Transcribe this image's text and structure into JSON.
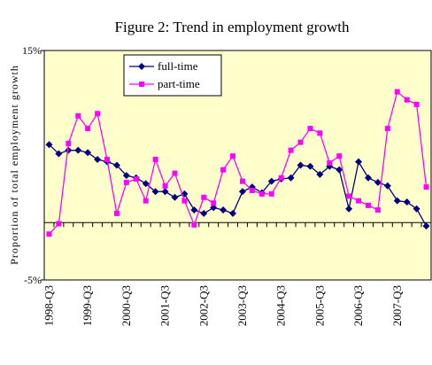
{
  "chart_data": {
    "type": "line",
    "title": "Figure 2: Trend in  employment growth",
    "y_label": "Proportion of total employment growth",
    "categories": [
      "1998-Q3",
      null,
      null,
      null,
      "1999-Q3",
      null,
      null,
      null,
      "2000-Q3",
      null,
      null,
      null,
      "2001-Q3",
      null,
      null,
      null,
      "2002-Q3",
      null,
      null,
      null,
      "2003-Q3",
      null,
      null,
      null,
      "2004-Q3",
      null,
      null,
      null,
      "2005-Q3",
      null,
      null,
      null,
      "2006-Q3",
      null,
      null,
      null,
      "2007-Q3",
      null,
      null,
      null
    ],
    "series": [
      {
        "name": "full-time",
        "color": "#000080",
        "marker": "diamond",
        "values": [
          6.8,
          6.0,
          6.3,
          6.3,
          6.1,
          5.5,
          5.3,
          5.0,
          4.1,
          3.9,
          3.4,
          2.7,
          2.7,
          2.2,
          2.5,
          1.1,
          0.8,
          1.3,
          1.1,
          0.8,
          2.7,
          3.1,
          2.6,
          3.6,
          3.8,
          3.9,
          5.0,
          4.9,
          4.2,
          4.9,
          4.6,
          1.2,
          5.3,
          3.9,
          3.5,
          3.2,
          1.9,
          1.8,
          1.2,
          -0.3
        ]
      },
      {
        "name": "part-time",
        "color": "#ff00ff",
        "marker": "square",
        "values": [
          -1.0,
          -0.1,
          6.9,
          9.3,
          8.2,
          9.5,
          5.5,
          0.8,
          3.5,
          3.8,
          1.9,
          5.5,
          3.2,
          4.3,
          1.9,
          -0.2,
          2.2,
          1.7,
          4.6,
          5.8,
          3.6,
          2.8,
          2.5,
          2.5,
          3.9,
          6.3,
          7.0,
          8.2,
          7.8,
          5.2,
          5.8,
          2.3,
          1.9,
          1.5,
          1.1,
          8.2,
          11.4,
          10.7,
          10.3,
          3.1
        ]
      }
    ],
    "ylim": [
      -5,
      15
    ],
    "yticks": [
      {
        "value": -5,
        "label": "-5%"
      },
      {
        "value": 15,
        "label": "15%"
      }
    ],
    "legend": "upper left"
  }
}
